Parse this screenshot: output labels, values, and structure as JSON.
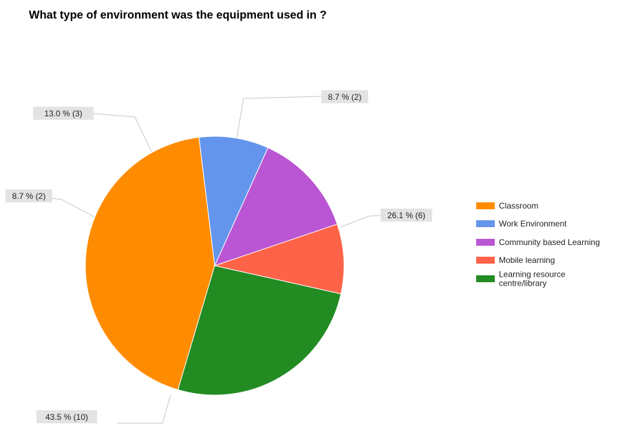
{
  "chart_data": {
    "type": "pie",
    "title": "What type of environment was the equipment used in ?",
    "slices": [
      {
        "label": "Classroom",
        "count": 10,
        "percent": 43.5,
        "label_text": "43.5 % (10)",
        "color": "#ff8c00"
      },
      {
        "label": "Work Environment",
        "count": 2,
        "percent": 8.7,
        "label_text": "8.7 % (2)",
        "color": "#6495ed"
      },
      {
        "label": "Community based Learning",
        "count": 3,
        "percent": 13.0,
        "label_text": "13.0 % (3)",
        "color": "#ba55d3"
      },
      {
        "label": "Mobile learning",
        "count": 2,
        "percent": 8.7,
        "label_text": "8.7 % (2)",
        "color": "#ff6347"
      },
      {
        "label": "Learning resource centre/library",
        "legend_lines": [
          "Learning resource",
          "centre/library"
        ],
        "count": 6,
        "percent": 26.1,
        "label_text": "26.1 % (6)",
        "color": "#228b22"
      }
    ],
    "legend_position": "right"
  }
}
